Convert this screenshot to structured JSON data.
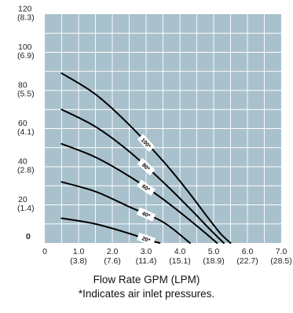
{
  "chart_data": {
    "type": "line",
    "title": "",
    "xlabel": "Flow Rate GPM (LPM)",
    "ylabel": "",
    "note": "*Indicates air inlet pressures.",
    "xlim": [
      0,
      7
    ],
    "ylim": [
      0,
      120
    ],
    "grid": true,
    "x_ticks": [
      {
        "value": 0,
        "label": "0",
        "sub": ""
      },
      {
        "value": 1,
        "label": "1.0",
        "sub": "(3.8)"
      },
      {
        "value": 2,
        "label": "2.0",
        "sub": "(7.6)"
      },
      {
        "value": 3,
        "label": "3.0",
        "sub": "(11.4)"
      },
      {
        "value": 4,
        "label": "4.0",
        "sub": "(15.1)"
      },
      {
        "value": 5,
        "label": "5.0",
        "sub": "(18.9)"
      },
      {
        "value": 6,
        "label": "6.0",
        "sub": "(22.7)"
      },
      {
        "value": 7,
        "label": "7.0",
        "sub": "(28.5)"
      }
    ],
    "y_ticks": [
      {
        "value": 0,
        "label": "0",
        "sub": ""
      },
      {
        "value": 20,
        "label": "20",
        "sub": "(1.4)"
      },
      {
        "value": 40,
        "label": "40",
        "sub": "(2.8)"
      },
      {
        "value": 60,
        "label": "60",
        "sub": "(4.1)"
      },
      {
        "value": 80,
        "label": "80",
        "sub": "(5.5)"
      },
      {
        "value": 100,
        "label": "100",
        "sub": "(6.9)"
      },
      {
        "value": 120,
        "label": "120",
        "sub": "(8.3)"
      }
    ],
    "series": [
      {
        "name": "100*",
        "x": [
          0.5,
          1.5,
          2.5,
          3.5,
          4.2,
          4.8,
          5.2,
          5.5
        ],
        "y": [
          89,
          78,
          62,
          43,
          28,
          14,
          5,
          0
        ]
      },
      {
        "name": "80*",
        "x": [
          0.5,
          1.5,
          2.5,
          3.5,
          4.3,
          4.9,
          5.3
        ],
        "y": [
          70,
          61,
          48,
          32,
          18,
          7,
          0
        ]
      },
      {
        "name": "60*",
        "x": [
          0.5,
          1.5,
          2.5,
          3.5,
          4.5,
          5.1
        ],
        "y": [
          52,
          45,
          35,
          23,
          9,
          0
        ]
      },
      {
        "name": "40*",
        "x": [
          0.5,
          1.5,
          2.5,
          3.5,
          4.3
        ],
        "y": [
          32,
          27,
          19,
          11,
          0
        ]
      },
      {
        "name": "20*",
        "x": [
          0.5,
          1.5,
          2.5,
          3.0,
          3.4
        ],
        "y": [
          13,
          10,
          5,
          2,
          0
        ]
      }
    ],
    "colors": {
      "plot_background": "#a9c1cc",
      "grid": "#ffffff",
      "curve": "#000000",
      "label_box": "#ffffff"
    }
  }
}
